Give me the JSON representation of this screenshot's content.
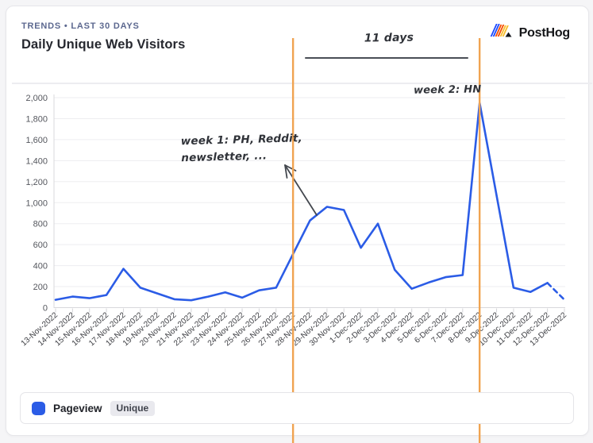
{
  "header": {
    "eyebrow": "TRENDS • LAST 30 DAYS",
    "title": "Daily Unique Web Visitors"
  },
  "logo": {
    "text": "PostHog"
  },
  "annotations": {
    "span_label": "11 days",
    "week1_line1": "week 1: PH, Reddit,",
    "week1_line2": "newsletter, ...",
    "week2": "week 2: HN"
  },
  "legend": {
    "series_label": "Pageview",
    "badge": "Unique"
  },
  "colors": {
    "series_blue": "#2b5ce6",
    "annotation_orange": "#f0a351",
    "ink": "#4a4e56"
  },
  "chart_data": {
    "type": "line",
    "title": "Daily Unique Web Visitors",
    "x": [
      "13-Nov-2022",
      "14-Nov-2022",
      "15-Nov-2022",
      "16-Nov-2022",
      "17-Nov-2022",
      "18-Nov-2022",
      "19-Nov-2022",
      "20-Nov-2022",
      "21-Nov-2022",
      "22-Nov-2022",
      "23-Nov-2022",
      "24-Nov-2022",
      "25-Nov-2022",
      "26-Nov-2022",
      "27-Nov-2022",
      "28-Nov-2022",
      "29-Nov-2022",
      "30-Nov-2022",
      "1-Dec-2022",
      "2-Dec-2022",
      "3-Dec-2022",
      "4-Dec-2022",
      "5-Dec-2022",
      "6-Dec-2022",
      "7-Dec-2022",
      "8-Dec-2022",
      "9-Dec-2022",
      "10-Dec-2022",
      "11-Dec-2022",
      "12-Dec-2022",
      "13-Dec-2022"
    ],
    "series": [
      {
        "name": "Pageview (Unique)",
        "values": [
          75,
          105,
          90,
          120,
          370,
          190,
          135,
          80,
          70,
          105,
          145,
          95,
          165,
          190,
          510,
          830,
          960,
          930,
          570,
          800,
          360,
          180,
          240,
          290,
          310,
          1950,
          1070,
          190,
          150,
          235,
          75
        ],
        "last_segment_dashed": true
      }
    ],
    "ylim": [
      0,
      2000
    ],
    "y_ticks": [
      "0",
      "200",
      "400",
      "600",
      "800",
      "1,000",
      "1,200",
      "1,400",
      "1,600",
      "1,800",
      "2,000"
    ],
    "grid": "horizontal",
    "legend_position": "bottom",
    "vertical_markers": {
      "x_dates": [
        "27-Nov-2022",
        "8-Dec-2022"
      ],
      "span_label": "11 days"
    }
  }
}
